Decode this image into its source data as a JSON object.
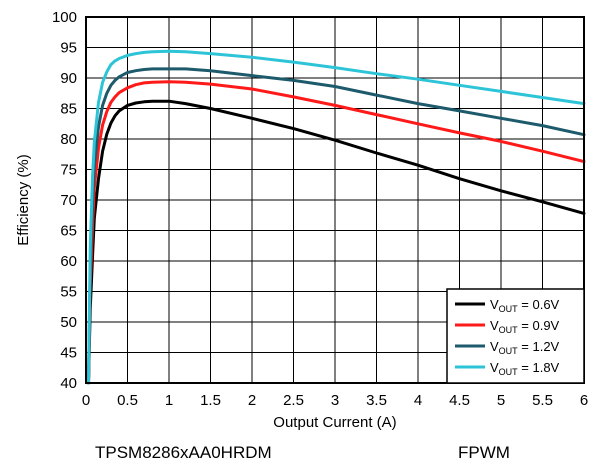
{
  "chart_data": {
    "type": "line",
    "xlabel": "Output Current (A)",
    "ylabel": "Efficiency (%)",
    "xlim": [
      0,
      6
    ],
    "ylim": [
      40,
      100
    ],
    "x_ticks": [
      "0",
      "0.5",
      "1",
      "1.5",
      "2",
      "2.5",
      "3",
      "3.5",
      "4",
      "4.5",
      "5",
      "5.5",
      "6"
    ],
    "y_ticks": [
      "40",
      "45",
      "50",
      "55",
      "60",
      "65",
      "70",
      "75",
      "80",
      "85",
      "90",
      "95",
      "100"
    ],
    "grid": true,
    "legend_position": "bottom-right",
    "series": [
      {
        "name": "VOUT = 0.6V",
        "label_sub": "OUT",
        "label_value": " = 0.6V",
        "color": "#000000",
        "points": [
          [
            0.03,
            40
          ],
          [
            0.05,
            52
          ],
          [
            0.08,
            61
          ],
          [
            0.1,
            67
          ],
          [
            0.15,
            73.5
          ],
          [
            0.2,
            78
          ],
          [
            0.25,
            80.8
          ],
          [
            0.3,
            82.6
          ],
          [
            0.35,
            83.8
          ],
          [
            0.4,
            84.6
          ],
          [
            0.5,
            85.5
          ],
          [
            0.6,
            85.9
          ],
          [
            0.7,
            86.1
          ],
          [
            0.8,
            86.2
          ],
          [
            1.0,
            86.2
          ],
          [
            1.2,
            85.8
          ],
          [
            1.5,
            85
          ],
          [
            2.0,
            83.4
          ],
          [
            2.5,
            81.7
          ],
          [
            3.0,
            79.8
          ],
          [
            3.5,
            77.7
          ],
          [
            4.0,
            75.7
          ],
          [
            4.5,
            73.5
          ],
          [
            5.0,
            71.5
          ],
          [
            5.5,
            69.7
          ],
          [
            6.0,
            67.8
          ]
        ]
      },
      {
        "name": "VOUT = 0.9V",
        "label_sub": "OUT",
        "label_value": " = 0.9V",
        "color": "#ff1a1a",
        "points": [
          [
            0.03,
            40
          ],
          [
            0.05,
            56
          ],
          [
            0.08,
            66
          ],
          [
            0.1,
            72
          ],
          [
            0.15,
            78.5
          ],
          [
            0.2,
            82.3
          ],
          [
            0.25,
            84.5
          ],
          [
            0.3,
            86
          ],
          [
            0.35,
            86.9
          ],
          [
            0.4,
            87.6
          ],
          [
            0.5,
            88.4
          ],
          [
            0.6,
            88.9
          ],
          [
            0.7,
            89.2
          ],
          [
            0.8,
            89.3
          ],
          [
            1.0,
            89.4
          ],
          [
            1.2,
            89.3
          ],
          [
            1.5,
            89
          ],
          [
            2.0,
            88.2
          ],
          [
            2.5,
            86.9
          ],
          [
            3.0,
            85.5
          ],
          [
            3.5,
            84
          ],
          [
            4.0,
            82.5
          ],
          [
            4.5,
            81
          ],
          [
            5.0,
            79.6
          ],
          [
            5.5,
            78
          ],
          [
            6.0,
            76.3
          ]
        ]
      },
      {
        "name": "VOUT = 1.2V",
        "label_sub": "OUT",
        "label_value": " = 1.2V",
        "color": "#1d5a6b",
        "points": [
          [
            0.03,
            40
          ],
          [
            0.05,
            59
          ],
          [
            0.08,
            70
          ],
          [
            0.1,
            75.5
          ],
          [
            0.15,
            82
          ],
          [
            0.2,
            85.5
          ],
          [
            0.25,
            87.5
          ],
          [
            0.3,
            88.8
          ],
          [
            0.35,
            89.6
          ],
          [
            0.4,
            90.2
          ],
          [
            0.5,
            90.9
          ],
          [
            0.6,
            91.2
          ],
          [
            0.7,
            91.4
          ],
          [
            0.8,
            91.5
          ],
          [
            1.0,
            91.5
          ],
          [
            1.2,
            91.5
          ],
          [
            1.5,
            91.2
          ],
          [
            2.0,
            90.4
          ],
          [
            2.5,
            89.6
          ],
          [
            3.0,
            88.6
          ],
          [
            3.5,
            87.2
          ],
          [
            4.0,
            85.8
          ],
          [
            4.5,
            84.6
          ],
          [
            5.0,
            83.4
          ],
          [
            5.5,
            82.2
          ],
          [
            6.0,
            80.7
          ]
        ]
      },
      {
        "name": "VOUT = 1.8V",
        "label_sub": "OUT",
        "label_value": " = 1.8V",
        "color": "#2ec4d8",
        "points": [
          [
            0.03,
            40
          ],
          [
            0.05,
            62
          ],
          [
            0.08,
            74
          ],
          [
            0.1,
            79.5
          ],
          [
            0.15,
            86
          ],
          [
            0.2,
            89.3
          ],
          [
            0.25,
            91
          ],
          [
            0.3,
            92.2
          ],
          [
            0.35,
            92.8
          ],
          [
            0.4,
            93.2
          ],
          [
            0.5,
            93.7
          ],
          [
            0.6,
            94
          ],
          [
            0.7,
            94.2
          ],
          [
            0.8,
            94.3
          ],
          [
            1.0,
            94.4
          ],
          [
            1.2,
            94.3
          ],
          [
            1.5,
            94
          ],
          [
            2.0,
            93.4
          ],
          [
            2.5,
            92.6
          ],
          [
            3.0,
            91.7
          ],
          [
            3.5,
            90.7
          ],
          [
            4.0,
            89.8
          ],
          [
            4.5,
            88.8
          ],
          [
            5.0,
            87.8
          ],
          [
            5.5,
            86.8
          ],
          [
            6.0,
            85.8
          ]
        ]
      }
    ]
  },
  "footer": {
    "left": "TPSM8286xAA0HRDM",
    "right": "FPWM"
  }
}
